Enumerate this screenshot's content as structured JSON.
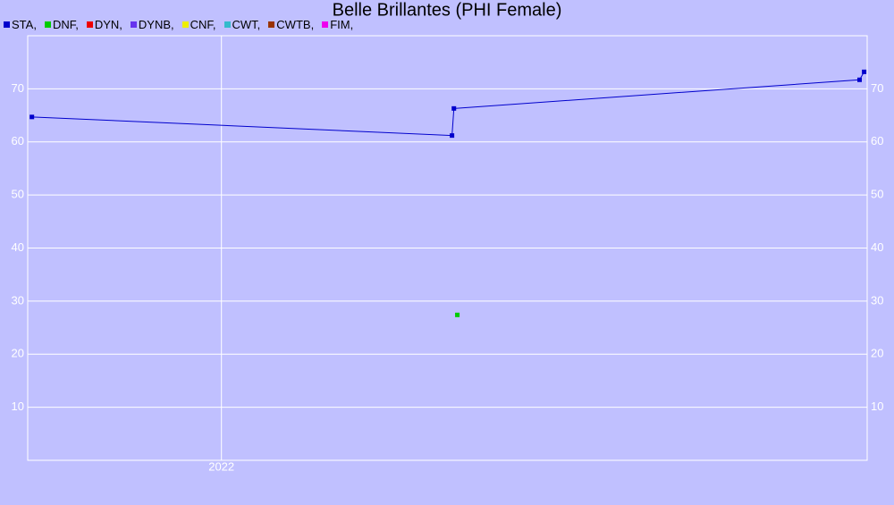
{
  "chart_data": {
    "type": "line",
    "title": "Belle Brillantes (PHI Female)",
    "xlim": [
      2021.49,
      2023.7
    ],
    "xticks": [
      2022
    ],
    "ylim": [
      0,
      80
    ],
    "yticks": [
      10,
      20,
      30,
      40,
      50,
      60,
      70
    ],
    "grid": true,
    "series": [
      {
        "name": "STA,",
        "color": "#0000cc",
        "x": [
          2021.501,
          2022.607,
          2022.612,
          2023.68,
          2023.692
        ],
        "values": [
          64.7,
          61.2,
          66.3,
          71.7,
          73.2
        ]
      },
      {
        "name": "DNF,",
        "color": "#00cc00",
        "x": [
          2022.621
        ],
        "values": [
          27.4
        ]
      },
      {
        "name": "DYN,",
        "color": "#ee0000",
        "x": [],
        "values": []
      },
      {
        "name": "DYNB,",
        "color": "#6633ee",
        "x": [],
        "values": []
      },
      {
        "name": "CNF,",
        "color": "#eeee00",
        "x": [],
        "values": []
      },
      {
        "name": "CWT,",
        "color": "#33bbcc",
        "x": [],
        "values": []
      },
      {
        "name": "CWTB,",
        "color": "#993300",
        "x": [],
        "values": []
      },
      {
        "name": "FIM,",
        "color": "#ee00ee",
        "x": [],
        "values": []
      }
    ]
  }
}
